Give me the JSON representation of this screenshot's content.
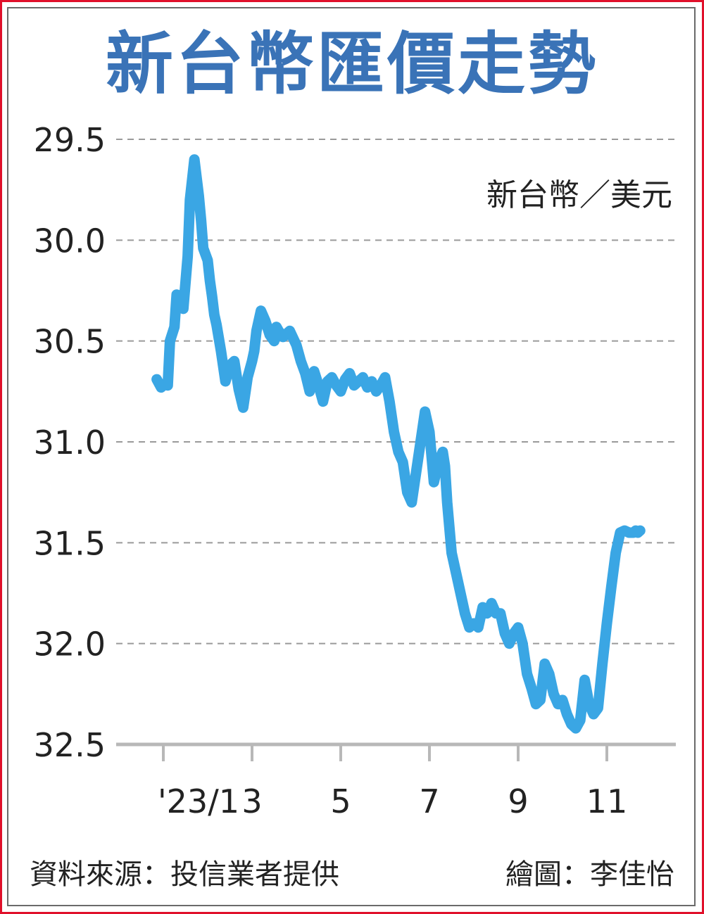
{
  "colors": {
    "frame": "#e0102a",
    "title": "#3a73b7",
    "line": "#3aa6e4",
    "grid": "#9a9a9a",
    "text": "#222222"
  },
  "chart_data": {
    "type": "line",
    "title": "新台幣匯價走勢",
    "unit_label": "新台幣／美元",
    "ylim": [
      29.5,
      32.5
    ],
    "y_inverted": true,
    "yticks": [
      29.5,
      30.0,
      30.5,
      31.0,
      31.5,
      32.0,
      32.5
    ],
    "ytick_labels": [
      "29.5",
      "30.0",
      "30.5",
      "31.0",
      "31.5",
      "32.0",
      "32.5"
    ],
    "xticks": [
      1,
      3,
      5,
      7,
      9,
      11
    ],
    "xtick_labels": [
      "'23/1",
      "3",
      "5",
      "7",
      "9",
      "11"
    ],
    "grid": true,
    "series": [
      {
        "x": [
          0.85,
          0.95,
          1.05,
          1.1,
          1.15,
          1.25,
          1.3,
          1.45,
          1.55,
          1.6,
          1.7,
          1.8,
          1.85,
          1.9,
          2.0,
          2.05,
          2.1,
          2.15,
          2.2,
          2.3,
          2.4,
          2.5,
          2.6,
          2.7,
          2.8,
          2.9,
          3.0,
          3.05,
          3.1,
          3.2,
          3.3,
          3.4,
          3.5,
          3.55,
          3.6,
          3.7,
          3.85,
          4.0,
          4.1,
          4.2,
          4.3,
          4.4,
          4.5,
          4.6,
          4.7,
          4.8,
          4.9,
          5.0,
          5.1,
          5.2,
          5.3,
          5.4,
          5.5,
          5.6,
          5.7,
          5.8,
          5.9,
          6.0,
          6.1,
          6.2,
          6.3,
          6.4,
          6.5,
          6.6,
          6.7,
          6.8,
          6.9,
          7.0,
          7.1,
          7.2,
          7.3,
          7.35,
          7.4,
          7.5,
          7.6,
          7.7,
          7.8,
          7.9,
          8.0,
          8.1,
          8.2,
          8.3,
          8.4,
          8.5,
          8.6,
          8.7,
          8.8,
          8.9,
          9.0,
          9.1,
          9.2,
          9.3,
          9.4,
          9.5,
          9.6,
          9.7,
          9.8,
          9.9,
          10.0,
          10.1,
          10.2,
          10.3,
          10.4,
          10.5,
          10.6,
          10.7,
          10.8,
          10.9,
          11.0,
          11.1,
          11.2,
          11.3,
          11.4,
          11.5,
          11.6,
          11.65,
          11.7,
          11.75
        ],
        "y": [
          30.69,
          30.73,
          30.71,
          30.72,
          30.5,
          30.43,
          30.27,
          30.34,
          30.08,
          29.8,
          29.6,
          29.78,
          29.9,
          30.04,
          30.1,
          30.2,
          30.28,
          30.37,
          30.42,
          30.55,
          30.7,
          30.62,
          30.6,
          30.74,
          30.83,
          30.68,
          30.6,
          30.55,
          30.45,
          30.35,
          30.4,
          30.47,
          30.5,
          30.43,
          30.45,
          30.48,
          30.45,
          30.52,
          30.6,
          30.66,
          30.75,
          30.65,
          30.72,
          30.8,
          30.7,
          30.68,
          30.72,
          30.75,
          30.69,
          30.66,
          30.72,
          30.7,
          30.68,
          30.73,
          30.7,
          30.75,
          30.72,
          30.68,
          30.8,
          30.95,
          31.05,
          31.1,
          31.25,
          31.3,
          31.15,
          31.0,
          30.85,
          30.95,
          31.2,
          31.1,
          31.05,
          31.12,
          31.3,
          31.55,
          31.65,
          31.75,
          31.85,
          31.92,
          31.9,
          31.92,
          31.82,
          31.85,
          31.8,
          31.85,
          31.85,
          31.95,
          32.0,
          31.95,
          31.92,
          32.0,
          32.15,
          32.22,
          32.3,
          32.28,
          32.1,
          32.15,
          32.25,
          32.3,
          32.28,
          32.35,
          32.4,
          32.42,
          32.38,
          32.18,
          32.3,
          32.35,
          32.32,
          32.1,
          31.9,
          31.72,
          31.55,
          31.45,
          31.44,
          31.45,
          31.45,
          31.44,
          31.45,
          31.44
        ]
      }
    ]
  },
  "footer": {
    "source": "資料來源：投信業者提供",
    "artist": "繪圖：李佳怡"
  }
}
